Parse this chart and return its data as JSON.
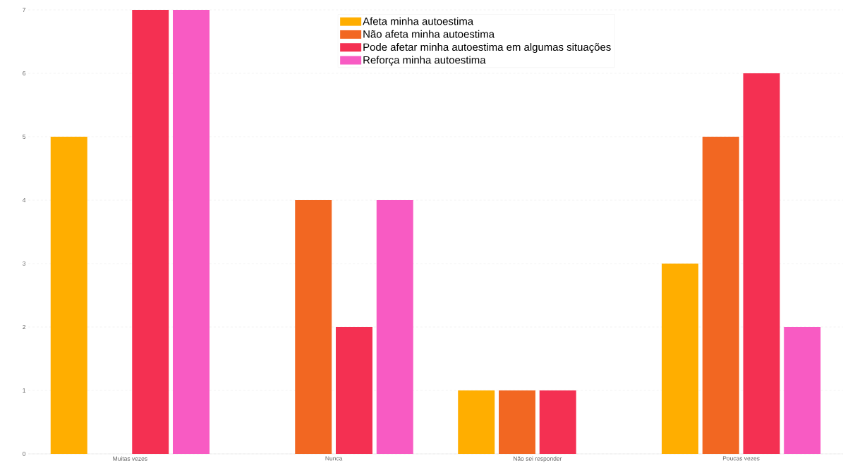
{
  "chart_data": {
    "type": "bar",
    "categories": [
      "Muitas vezes",
      "Nunca",
      "Não sei responder",
      "Poucas vezes"
    ],
    "series": [
      {
        "name": "Afeta minha autoestima",
        "color": "#ffae00",
        "values": [
          5,
          0,
          1,
          3
        ]
      },
      {
        "name": "Não afeta minha autoestima",
        "color": "#f26722",
        "values": [
          0,
          4,
          1,
          5
        ]
      },
      {
        "name": "Pode afetar minha autoestima em algumas situações",
        "color": "#f43052",
        "values": [
          7,
          2,
          1,
          6
        ]
      },
      {
        "name": "Reforça minha autoestima",
        "color": "#f85bc3",
        "values": [
          7,
          4,
          0,
          2
        ]
      }
    ],
    "ylim": [
      0,
      7
    ],
    "yticks": [
      0,
      1,
      2,
      3,
      4,
      5,
      6,
      7
    ],
    "grid": "y",
    "legend": "top"
  }
}
